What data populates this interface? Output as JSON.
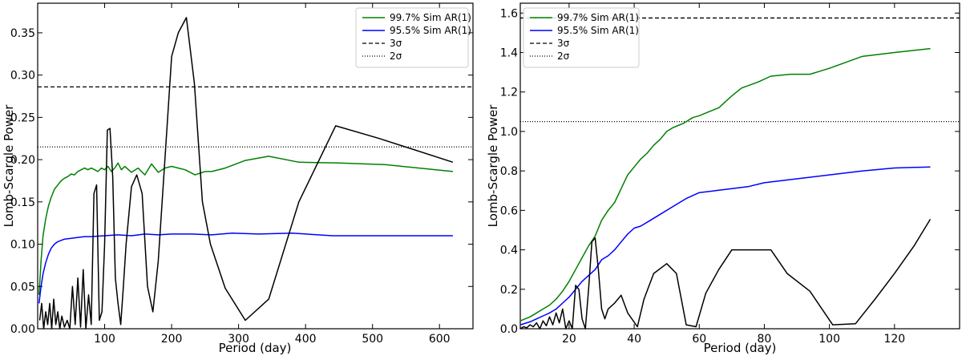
{
  "chart_data": [
    {
      "type": "line",
      "xlabel": "Period (day)",
      "ylabel": "Lomb-Scargle Power",
      "xlim": [
        0,
        650
      ],
      "ylim": [
        0,
        0.385
      ],
      "xticks": [
        100,
        200,
        300,
        400,
        500,
        600
      ],
      "yticks": [
        0.0,
        0.05,
        0.1,
        0.15,
        0.2,
        0.25,
        0.3,
        0.35
      ],
      "ytick_decimals": 2,
      "legend_position": "top-right",
      "legend": [
        {
          "label": "99.7% Sim AR(1)",
          "color": "#008000",
          "style": "solid"
        },
        {
          "label": "95.5% Sim AR(1)",
          "color": "#0000ff",
          "style": "solid"
        },
        {
          "label": "3σ",
          "color": "#000000",
          "style": "dashed"
        },
        {
          "label": "2σ",
          "color": "#000000",
          "style": "dotted"
        }
      ],
      "hlines": [
        {
          "name": "3sigma",
          "y": 0.286,
          "style": "dashed"
        },
        {
          "name": "2sigma",
          "y": 0.215,
          "style": "dotted"
        }
      ],
      "series": [
        {
          "name": "99.7% Sim AR(1)",
          "color": "#008000",
          "x": [
            2,
            5,
            8,
            12,
            16,
            20,
            25,
            30,
            35,
            40,
            45,
            50,
            55,
            60,
            65,
            70,
            75,
            80,
            85,
            90,
            95,
            100,
            105,
            110,
            115,
            120,
            125,
            130,
            140,
            150,
            160,
            170,
            180,
            190,
            200,
            210,
            220,
            235,
            250,
            260,
            280,
            310,
            345,
            390,
            450,
            520,
            620
          ],
          "y": [
            0.04,
            0.08,
            0.11,
            0.13,
            0.145,
            0.155,
            0.165,
            0.17,
            0.175,
            0.178,
            0.18,
            0.183,
            0.182,
            0.186,
            0.188,
            0.19,
            0.188,
            0.19,
            0.188,
            0.186,
            0.19,
            0.188,
            0.192,
            0.186,
            0.19,
            0.196,
            0.188,
            0.192,
            0.185,
            0.19,
            0.182,
            0.195,
            0.185,
            0.19,
            0.192,
            0.19,
            0.188,
            0.182,
            0.186,
            0.186,
            0.19,
            0.199,
            0.204,
            0.197,
            0.196,
            0.194,
            0.186
          ]
        },
        {
          "name": "95.5% Sim AR(1)",
          "color": "#0000ff",
          "x": [
            2,
            5,
            8,
            12,
            16,
            20,
            25,
            30,
            40,
            50,
            60,
            70,
            80,
            100,
            120,
            140,
            160,
            180,
            200,
            230,
            260,
            290,
            330,
            380,
            440,
            520,
            620
          ],
          "y": [
            0.03,
            0.05,
            0.065,
            0.078,
            0.088,
            0.095,
            0.1,
            0.103,
            0.106,
            0.107,
            0.108,
            0.109,
            0.109,
            0.11,
            0.111,
            0.11,
            0.112,
            0.111,
            0.112,
            0.112,
            0.111,
            0.113,
            0.112,
            0.113,
            0.11,
            0.11,
            0.11
          ]
        },
        {
          "name": "Lomb-Scargle Power",
          "color": "#000000",
          "x": [
            3,
            6,
            9,
            12,
            15,
            18,
            21,
            24,
            27,
            30,
            33,
            36,
            40,
            44,
            48,
            52,
            56,
            60,
            64,
            68,
            72,
            76,
            80,
            84,
            88,
            92,
            96,
            100,
            104,
            108,
            112,
            116,
            120,
            124,
            128,
            132,
            140,
            148,
            156,
            164,
            172,
            180,
            190,
            200,
            210,
            222,
            234,
            246,
            258,
            280,
            310,
            345,
            390,
            445,
            510,
            620
          ],
          "y": [
            0.01,
            0.03,
            0.0,
            0.02,
            0.005,
            0.03,
            0.0,
            0.035,
            0.005,
            0.02,
            0.0,
            0.015,
            0.002,
            0.01,
            0.0,
            0.05,
            0.005,
            0.06,
            0.002,
            0.07,
            0.0,
            0.04,
            0.005,
            0.16,
            0.17,
            0.01,
            0.02,
            0.1,
            0.235,
            0.237,
            0.18,
            0.06,
            0.03,
            0.005,
            0.05,
            0.1,
            0.168,
            0.182,
            0.16,
            0.05,
            0.02,
            0.08,
            0.2,
            0.322,
            0.35,
            0.368,
            0.29,
            0.15,
            0.1,
            0.048,
            0.01,
            0.035,
            0.15,
            0.24,
            0.225,
            0.197
          ]
        }
      ]
    },
    {
      "type": "line",
      "xlabel": "Period (day)",
      "ylabel": "Lomb-Scargle Power",
      "xlim": [
        5,
        140
      ],
      "ylim": [
        0,
        1.65
      ],
      "xticks": [
        20,
        40,
        60,
        80,
        100,
        120
      ],
      "yticks": [
        0.0,
        0.2,
        0.4,
        0.6,
        0.8,
        1.0,
        1.2,
        1.4,
        1.6
      ],
      "ytick_decimals": 1,
      "legend_position": "top-left",
      "legend": [
        {
          "label": "99.7% Sim AR(1)",
          "color": "#008000",
          "style": "solid"
        },
        {
          "label": "95.5% Sim AR(1)",
          "color": "#0000ff",
          "style": "solid"
        },
        {
          "label": "3σ",
          "color": "#000000",
          "style": "dashed"
        },
        {
          "label": "2σ",
          "color": "#000000",
          "style": "dotted"
        }
      ],
      "hlines": [
        {
          "name": "3sigma",
          "y": 1.575,
          "style": "dashed"
        },
        {
          "name": "2sigma",
          "y": 1.05,
          "style": "dotted"
        }
      ],
      "series": [
        {
          "name": "99.7% Sim AR(1)",
          "color": "#008000",
          "x": [
            5,
            8,
            10,
            12,
            14,
            16,
            18,
            20,
            22,
            24,
            26,
            28,
            30,
            32,
            34,
            36,
            38,
            40,
            42,
            44,
            46,
            48,
            50,
            52,
            55,
            58,
            60,
            63,
            66,
            70,
            73,
            78,
            82,
            88,
            94,
            100,
            110,
            120,
            131
          ],
          "y": [
            0.04,
            0.06,
            0.08,
            0.1,
            0.12,
            0.15,
            0.19,
            0.24,
            0.3,
            0.36,
            0.42,
            0.47,
            0.55,
            0.6,
            0.64,
            0.71,
            0.78,
            0.82,
            0.86,
            0.89,
            0.93,
            0.96,
            1.0,
            1.02,
            1.04,
            1.07,
            1.08,
            1.1,
            1.12,
            1.18,
            1.22,
            1.25,
            1.28,
            1.29,
            1.29,
            1.32,
            1.38,
            1.4,
            1.42
          ]
        },
        {
          "name": "95.5% Sim AR(1)",
          "color": "#0000ff",
          "x": [
            5,
            8,
            10,
            12,
            14,
            16,
            18,
            20,
            22,
            24,
            26,
            28,
            30,
            32,
            34,
            36,
            38,
            40,
            42,
            45,
            48,
            52,
            56,
            60,
            65,
            70,
            75,
            80,
            90,
            100,
            110,
            120,
            131
          ],
          "y": [
            0.02,
            0.035,
            0.05,
            0.065,
            0.08,
            0.1,
            0.13,
            0.16,
            0.2,
            0.24,
            0.27,
            0.3,
            0.35,
            0.37,
            0.4,
            0.44,
            0.48,
            0.51,
            0.52,
            0.55,
            0.58,
            0.62,
            0.66,
            0.69,
            0.7,
            0.71,
            0.72,
            0.74,
            0.76,
            0.78,
            0.8,
            0.815,
            0.82
          ]
        },
        {
          "name": "Lomb-Scargle Power",
          "color": "#000000",
          "x": [
            5,
            6,
            7,
            8,
            9,
            10,
            11,
            12,
            13,
            14,
            15,
            16,
            17,
            18,
            19,
            20,
            21,
            22,
            23,
            24,
            25,
            26,
            27,
            28,
            29,
            30,
            31,
            32,
            34,
            36,
            38,
            41,
            43,
            46,
            50,
            53,
            56,
            59,
            62,
            66,
            70,
            74,
            78,
            82,
            87,
            94,
            101,
            108,
            114,
            120,
            126,
            131
          ],
          "y": [
            0.0,
            0.01,
            0.005,
            0.02,
            0.01,
            0.03,
            0.0,
            0.04,
            0.015,
            0.06,
            0.02,
            0.08,
            0.03,
            0.1,
            0.0,
            0.04,
            0.0,
            0.22,
            0.2,
            0.05,
            0.0,
            0.2,
            0.44,
            0.46,
            0.3,
            0.1,
            0.05,
            0.1,
            0.13,
            0.17,
            0.08,
            0.01,
            0.15,
            0.28,
            0.33,
            0.28,
            0.02,
            0.01,
            0.18,
            0.3,
            0.4,
            0.4,
            0.4,
            0.4,
            0.28,
            0.19,
            0.02,
            0.025,
            0.15,
            0.28,
            0.42,
            0.555
          ]
        }
      ]
    }
  ]
}
